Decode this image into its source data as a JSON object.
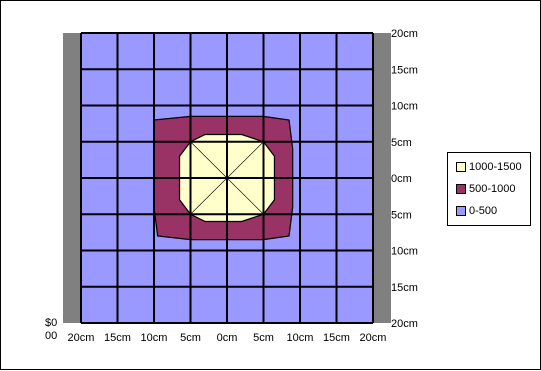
{
  "chart_data": {
    "type": "contour",
    "x_tick_labels": [
      "20cm",
      "15cm",
      "10cm",
      "5cm",
      "0cm",
      "5cm",
      "10cm",
      "15cm",
      "20cm"
    ],
    "y_tick_labels": [
      "20cm",
      "15cm",
      "10cm",
      "5cm",
      "0cm",
      "5cm",
      "10cm",
      "15cm",
      "20cm"
    ],
    "z_axis_stray_labels": [
      "$0",
      "00"
    ],
    "grid": true,
    "legend_position": "right",
    "series": [
      {
        "name": "1000-1500",
        "range": [
          1000,
          1500
        ],
        "color": "#ffffcc"
      },
      {
        "name": "500-1000",
        "range": [
          500,
          1000
        ],
        "color": "#993366"
      },
      {
        "name": "0-500",
        "range": [
          0,
          500
        ],
        "color": "#9999ff"
      }
    ],
    "contours_cm": {
      "500-1000": [
        [
          -10,
          8
        ],
        [
          -5,
          8.5
        ],
        [
          5,
          8.5
        ],
        [
          8.5,
          8
        ],
        [
          9,
          4
        ],
        [
          9,
          -4
        ],
        [
          8.5,
          -8
        ],
        [
          5,
          -8.5
        ],
        [
          -5,
          -8.5
        ],
        [
          -9.5,
          -8
        ],
        [
          -10,
          -4
        ],
        [
          -10,
          4
        ]
      ],
      "1000-1500": [
        [
          -3,
          6
        ],
        [
          2,
          6
        ],
        [
          5,
          5
        ],
        [
          6.5,
          3
        ],
        [
          6.5,
          -3
        ],
        [
          5,
          -5
        ],
        [
          2,
          -6
        ],
        [
          -3,
          -6
        ],
        [
          -5,
          -5
        ],
        [
          -6.5,
          -3
        ],
        [
          -6.5,
          3
        ],
        [
          -5,
          5
        ]
      ]
    },
    "xlim": [
      -20,
      20
    ],
    "ylim": [
      -20,
      20
    ]
  }
}
